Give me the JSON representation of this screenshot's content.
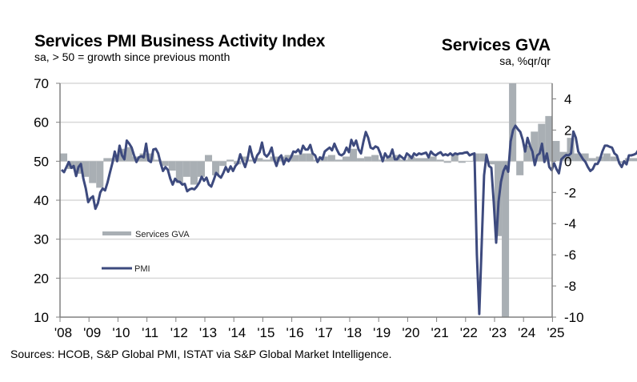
{
  "header": {
    "title": "Services PMI Business Activity Index",
    "subtitle": "sa, > 50 = growth since previous month",
    "right_title": "Services GVA",
    "right_subtitle": "sa, %qr/qr"
  },
  "footer": {
    "source": "Sources: HCOB, S&P Global PMI, ISTAT via S&P Global Market Intelligence."
  },
  "colors": {
    "pmi_line": "#3d4a7e",
    "gva_bars": "#a9afb4",
    "gridline": "#d9d9d9",
    "axis": "#808080"
  },
  "chart_data": {
    "type": "line+bar",
    "title": "Services PMI Business Activity Index",
    "subtitle": "sa, > 50 = growth since previous month",
    "right_axis_title": "Services GVA",
    "right_axis_subtitle": "sa, %qr/qr",
    "xlabel": "",
    "x_tick_labels": [
      "'08",
      "'09",
      "'10",
      "'11",
      "'12",
      "'13",
      "'14",
      "'15",
      "'16",
      "'17",
      "'18",
      "'19",
      "'20",
      "'21",
      "'22",
      "'23",
      "'24",
      "'25"
    ],
    "left_axis": {
      "ylim": [
        10,
        70
      ],
      "ticks": [
        "10",
        "20",
        "30",
        "40",
        "50",
        "60",
        "70"
      ]
    },
    "right_axis": {
      "ylim": [
        -10,
        5
      ],
      "ticks": [
        "-10",
        "-8",
        "-6",
        "-4",
        "-2",
        "0",
        "2",
        "4"
      ]
    },
    "grid": true,
    "legend": [
      {
        "name": "Services GVA",
        "type": "bar",
        "position": "left-middle"
      },
      {
        "name": "PMI",
        "type": "line",
        "position": "left-middle"
      }
    ],
    "series": [
      {
        "name": "PMI",
        "axis": "left",
        "type": "line",
        "x_start": 2008.0,
        "step": "monthly",
        "values": [
          47.8,
          47.2,
          48.5,
          49.8,
          48.3,
          48.8,
          46.2,
          48.5,
          49.3,
          45.5,
          43.0,
          39.5,
          40.5,
          41.0,
          37.8,
          39.2,
          42.0,
          43.0,
          42.5,
          44.5,
          47.0,
          49.5,
          52.5,
          50.0,
          54.0,
          51.5,
          50.5,
          55.3,
          54.5,
          53.5,
          51.5,
          49.8,
          51.0,
          51.3,
          51.0,
          54.5,
          50.2,
          49.8,
          53.0,
          53.2,
          52.0,
          49.5,
          47.5,
          48.5,
          47.8,
          45.5,
          44.0,
          45.5,
          44.8,
          44.7,
          44.0,
          44.2,
          42.3,
          42.8,
          43.0,
          42.8,
          43.5,
          44.5,
          46.0,
          45.0,
          45.8,
          44.0,
          43.5,
          45.2,
          47.0,
          46.3,
          45.8,
          47.0,
          48.5,
          47.3,
          48.7,
          47.5,
          48.8,
          49.5,
          51.8,
          50.0,
          48.5,
          50.5,
          53.8,
          51.3,
          49.7,
          51.5,
          52.3,
          54.8,
          51.8,
          51.2,
          52.0,
          53.5,
          50.5,
          48.8,
          50.8,
          51.5,
          49.2,
          50.7,
          50.0,
          51.0,
          52.5,
          52.3,
          53.0,
          52.0,
          54.0,
          53.0,
          53.0,
          54.2,
          52.0,
          51.5,
          49.8,
          51.0,
          50.5,
          52.5,
          53.0,
          53.5,
          52.8,
          54.5,
          53.0,
          51.8,
          51.5,
          52.0,
          53.5,
          52.3,
          55.5,
          54.0,
          55.3,
          53.0,
          52.0,
          55.0,
          57.5,
          56.0,
          53.5,
          53.2,
          53.8,
          53.5,
          52.0,
          50.0,
          52.0,
          51.0,
          51.3,
          53.0,
          50.5,
          50.5,
          51.5,
          51.0,
          50.5,
          52.0,
          51.5,
          50.8,
          52.0,
          51.5,
          52.0,
          51.8,
          52.0,
          52.2,
          51.0,
          52.5,
          51.8,
          51.5,
          52.0,
          52.3,
          51.5,
          51.8,
          51.5,
          52.0,
          51.5,
          52.0,
          51.8,
          52.0,
          52.0,
          52.2,
          52.3,
          51.5,
          51.8,
          52.0,
          26.0,
          10.8,
          28.5,
          46.4,
          51.6,
          48.8,
          48.3,
          39.4,
          29.1,
          39.7,
          44.7,
          47.5,
          48.8,
          47.3,
          55.1,
          58.0,
          59.1,
          58.2,
          57.5,
          55.5,
          52.5,
          56.0,
          54.0,
          52.5,
          49.0,
          51.5,
          52.0,
          54.5,
          49.8,
          52.0,
          48.5,
          47.7,
          49.5,
          48.0,
          46.9,
          50.5,
          51.1,
          51.6,
          51.5,
          52.0,
          57.6,
          56.0,
          52.5,
          51.5,
          50.5,
          49.8,
          48.5,
          47.5,
          48.0,
          49.3,
          49.3,
          50.5,
          52.5,
          54.0,
          54.0,
          53.7,
          53.5,
          52.0,
          51.5,
          49.5,
          48.5,
          50.0,
          49.2,
          51.5,
          51.5,
          51.7,
          52.0,
          53.0,
          53.0,
          53.5
        ]
      },
      {
        "name": "Services GVA",
        "axis": "right",
        "type": "bar",
        "x_start": 2008.0,
        "step": "quarterly",
        "values": [
          0.5,
          -0.5,
          -0.8,
          -1.0,
          -1.4,
          -1.7,
          0.2,
          0.2,
          0.8,
          0.9,
          0.3,
          0.5,
          0.5,
          0.1,
          -0.3,
          -0.6,
          -1.4,
          -1.0,
          -1.5,
          -1.0,
          0.4,
          -0.9,
          -0.3,
          0.1,
          -0.2,
          0.3,
          0.1,
          0.2,
          0.1,
          0.3,
          0.3,
          0.4,
          0.4,
          0.5,
          0.5,
          0.1,
          0.3,
          0.4,
          0.1,
          0.3,
          0.8,
          0.2,
          0.3,
          0.4,
          0.1,
          0.3,
          0.4,
          0.1,
          0.3,
          0.2,
          0.2,
          0.3,
          0.1,
          -0.1,
          0.4,
          -0.1,
          0.0,
          0.5,
          0.5,
          -0.2,
          -4.8,
          -10.0,
          12.8,
          -0.9,
          1.0,
          1.9,
          2.4,
          2.9,
          1.3,
          0.6,
          1.5,
          0.5,
          0.5,
          0.2,
          0.3,
          0.5,
          0.3,
          -0.1,
          0.2,
          0.2,
          0.4,
          0.2,
          0.3,
          0.3,
          0.3,
          0.1,
          0.1,
          0.3,
          0.3,
          0.2
        ]
      }
    ]
  }
}
